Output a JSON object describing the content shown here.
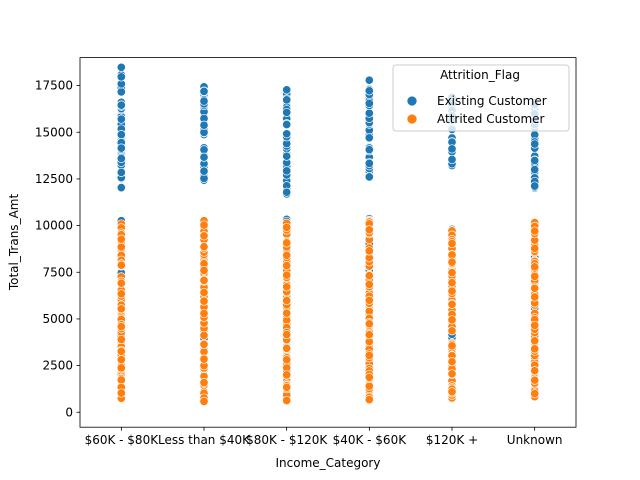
{
  "chart_data": {
    "type": "scatter",
    "xlabel": "Income_Category",
    "ylabel": "Total_Trans_Amt",
    "categories": [
      "$60K - $80K",
      "Less than $40K",
      "$80K - $120K",
      "$40K - $60K",
      "$120K +",
      "Unknown"
    ],
    "ylim": [
      -800,
      19000
    ],
    "yticks": [
      0,
      2500,
      5000,
      7500,
      10000,
      12500,
      15000,
      17500
    ],
    "ytick_labels": [
      "0",
      "2500",
      "5000",
      "7500",
      "10000",
      "12500",
      "15000",
      "17500"
    ],
    "grid": false,
    "legend": {
      "title": "Attrition_Flag",
      "placement": "top-right"
    },
    "series": [
      {
        "name": "Existing Customer",
        "color": "#1f77b4",
        "ranges": [
          {
            "category": "$60K - $80K",
            "segments": [
              [
                900,
                10300
              ],
              [
                12000,
                18500
              ]
            ]
          },
          {
            "category": "Less than $40K",
            "segments": [
              [
                600,
                10300
              ],
              [
                12300,
                17700
              ]
            ]
          },
          {
            "category": "$80K - $120K",
            "segments": [
              [
                800,
                10400
              ],
              [
                11600,
                17500
              ]
            ]
          },
          {
            "category": "$40K - $60K",
            "segments": [
              [
                700,
                10600
              ],
              [
                12500,
                17800
              ]
            ]
          },
          {
            "category": "$120K +",
            "segments": [
              [
                900,
                9900
              ],
              [
                13000,
                17000
              ]
            ]
          },
          {
            "category": "Unknown",
            "segments": [
              [
                800,
                10200
              ],
              [
                12000,
                17000
              ]
            ]
          }
        ]
      },
      {
        "name": "Attrited Customer",
        "color": "#ff7f0e",
        "ranges": [
          {
            "category": "$60K - $80K",
            "segments": [
              [
                600,
                10300
              ]
            ]
          },
          {
            "category": "Less than $40K",
            "segments": [
              [
                500,
                10300
              ]
            ]
          },
          {
            "category": "$80K - $120K",
            "segments": [
              [
                600,
                10500
              ]
            ]
          },
          {
            "category": "$40K - $60K",
            "segments": [
              [
                600,
                10600
              ]
            ]
          },
          {
            "category": "$120K +",
            "segments": [
              [
                700,
                10000
              ]
            ]
          },
          {
            "category": "Unknown",
            "segments": [
              [
                700,
                10200
              ]
            ]
          }
        ]
      }
    ]
  }
}
